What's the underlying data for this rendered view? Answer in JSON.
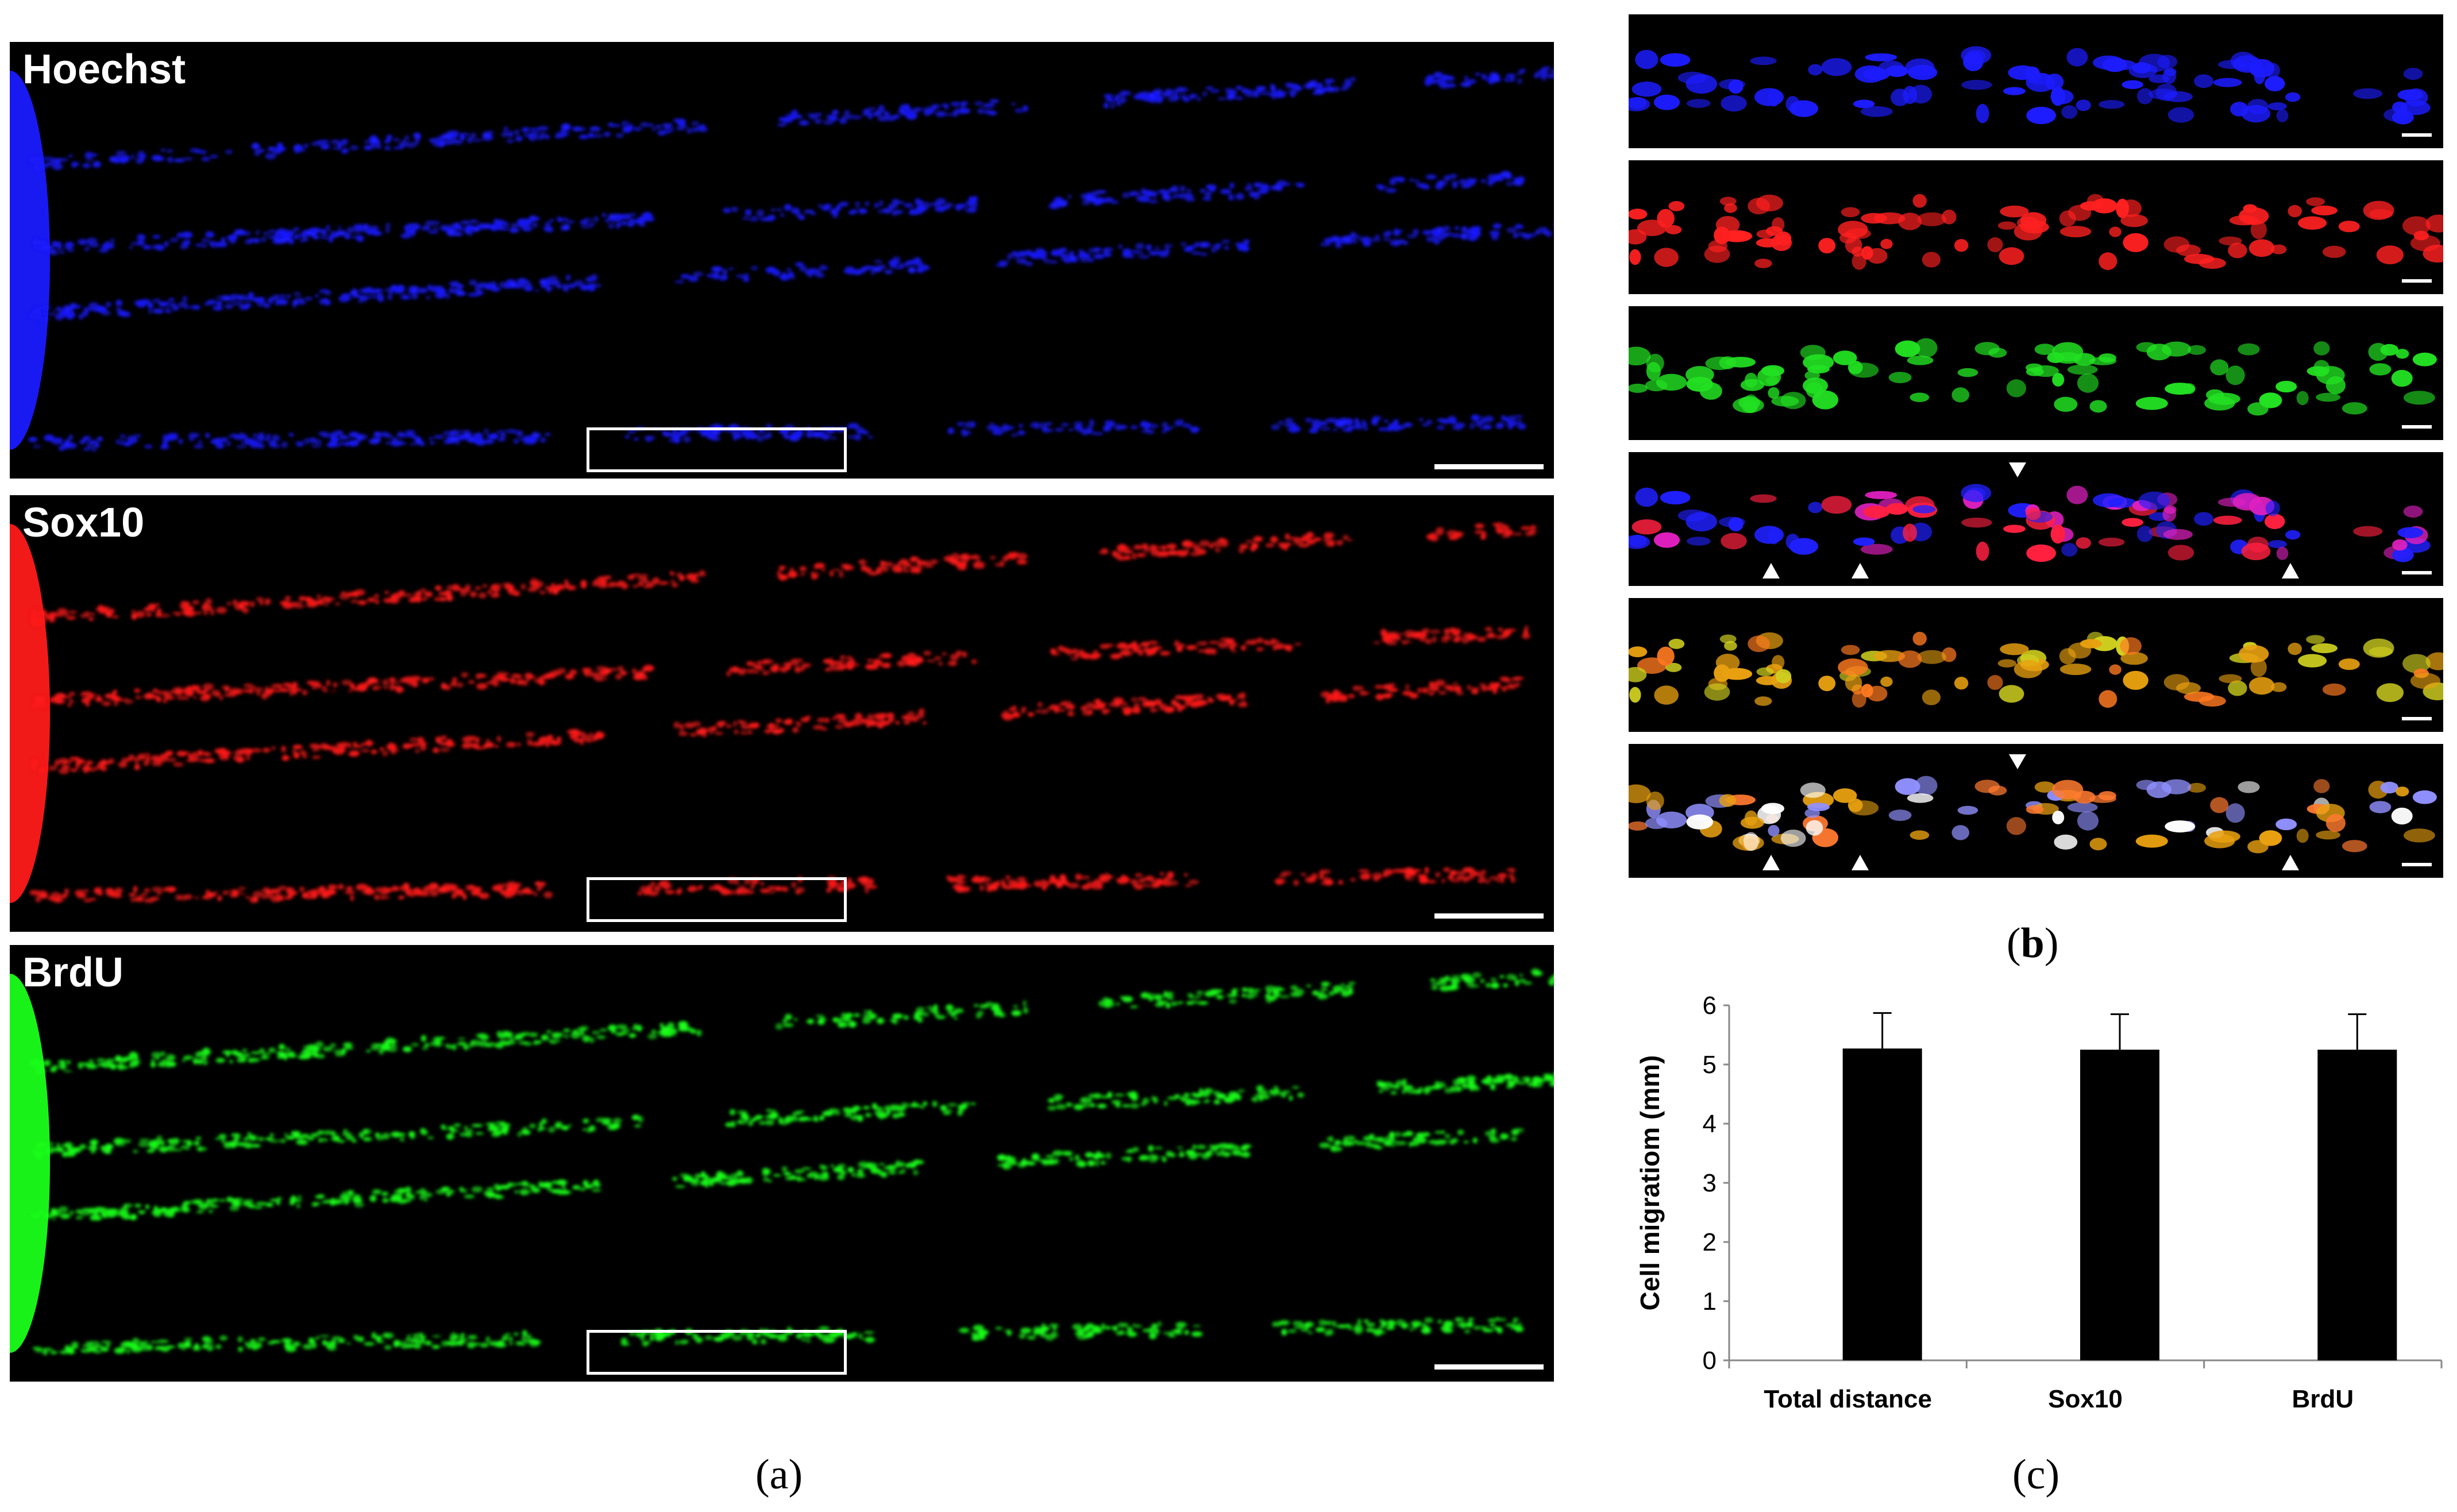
{
  "figure": {
    "panel_a": {
      "caption_letter": "a",
      "channels": [
        {
          "label": "Hoechst",
          "color": "#1a1aff"
        },
        {
          "label": "Sox10",
          "color": "#ff1a1a"
        },
        {
          "label": "BrdU",
          "color": "#1aff1a"
        }
      ]
    },
    "panel_b": {
      "caption_letter": "b",
      "strips": [
        {
          "name": "hoechst",
          "colors": [
            "#1c1cff"
          ]
        },
        {
          "name": "sox10",
          "colors": [
            "#ff2020"
          ]
        },
        {
          "name": "brdu",
          "colors": [
            "#22e022"
          ]
        },
        {
          "name": "hoechst-sox10-merge",
          "colors": [
            "#ff2040",
            "#e020c0",
            "#2020ff"
          ]
        },
        {
          "name": "sox10-brdu-merge",
          "colors": [
            "#e8a010",
            "#d0d020",
            "#ff7a20"
          ]
        },
        {
          "name": "triple-merge",
          "colors": [
            "#e8a010",
            "#ff7a30",
            "#9090ff",
            "#ffffff"
          ]
        }
      ]
    },
    "panel_c": {
      "caption_letter": "c"
    }
  },
  "chart_data": {
    "type": "bar",
    "categories": [
      "Total distance",
      "Sox10",
      "BrdU"
    ],
    "values": [
      5.27,
      5.25,
      5.25
    ],
    "errors": [
      0.6,
      0.6,
      0.6
    ],
    "ylabel": "Cell migratiom (mm)",
    "xlabel": "",
    "ylim": [
      0,
      6
    ],
    "yticks": [
      0,
      1,
      2,
      3,
      4,
      5,
      6
    ],
    "bar_color": "#000000",
    "grid": false
  }
}
